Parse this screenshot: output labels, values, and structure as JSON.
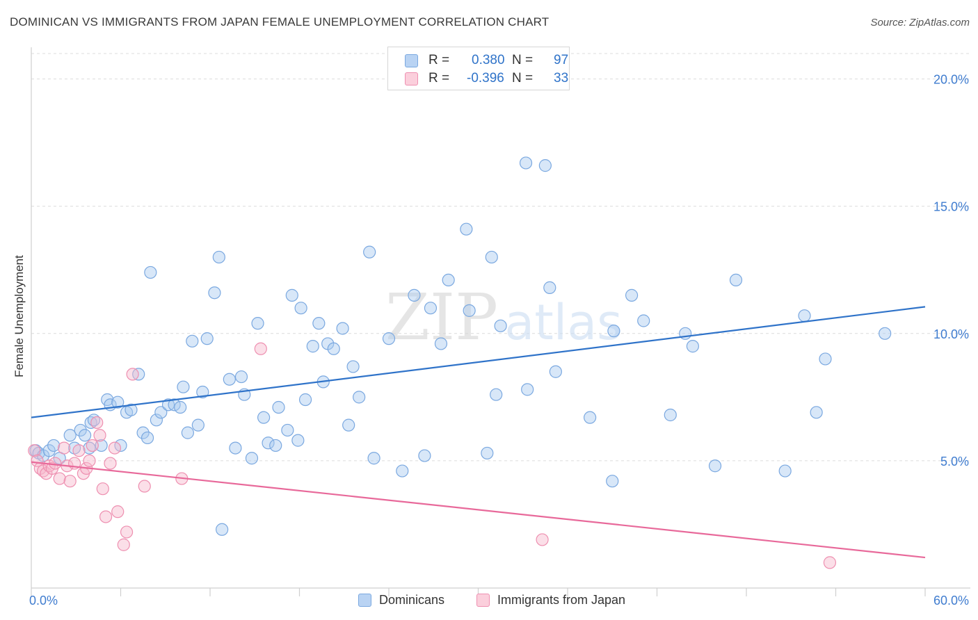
{
  "title": "DOMINICAN VS IMMIGRANTS FROM JAPAN FEMALE UNEMPLOYMENT CORRELATION CHART",
  "source": "Source: ZipAtlas.com",
  "watermark": {
    "zip": "ZIP",
    "atlas": "atlas"
  },
  "legend": {
    "r_label": "R =",
    "n_label": "N =",
    "rows": [
      {
        "name": "Dominicans",
        "r": "0.380",
        "n": "97"
      },
      {
        "name": "Immigrants from Japan",
        "r": "-0.396",
        "n": "33"
      }
    ]
  },
  "colors": {
    "blue_fill": "#a9c9f0",
    "blue_stroke": "#7aa8e0",
    "blue_line": "#2f73c9",
    "pink_fill": "#f7b8cb",
    "pink_stroke": "#ee8fb0",
    "pink_line": "#e8699a",
    "axis_text": "#3f7ccf",
    "grid": "#dcdcdc"
  },
  "chart_data": {
    "type": "scatter",
    "title": "DOMINICAN VS IMMIGRANTS FROM JAPAN FEMALE UNEMPLOYMENT CORRELATION CHART",
    "xlabel": "",
    "ylabel": "Female Unemployment",
    "xlim": [
      0,
      60
    ],
    "ylim": [
      0,
      21
    ],
    "x_tick_labels": [
      "0.0%",
      "60.0%"
    ],
    "y_ticks": [
      5,
      10,
      15,
      20
    ],
    "y_tick_labels": [
      "5.0%",
      "10.0%",
      "15.0%",
      "20.0%"
    ],
    "grid": true,
    "legend_position": "bottom",
    "series": [
      {
        "name": "Dominicans",
        "trend": {
          "x0": 0,
          "y0": 6.7,
          "x1": 60,
          "y1": 11.05
        },
        "points": [
          [
            0.3,
            5.4
          ],
          [
            0.5,
            5.3
          ],
          [
            0.8,
            5.2
          ],
          [
            1.2,
            5.4
          ],
          [
            1.5,
            5.6
          ],
          [
            1.9,
            5.1
          ],
          [
            2.6,
            6.0
          ],
          [
            2.9,
            5.5
          ],
          [
            3.3,
            6.2
          ],
          [
            3.6,
            6.0
          ],
          [
            4.0,
            6.5
          ],
          [
            4.2,
            6.6
          ],
          [
            4.7,
            5.6
          ],
          [
            5.1,
            7.4
          ],
          [
            5.3,
            7.2
          ],
          [
            5.8,
            7.3
          ],
          [
            6.0,
            5.6
          ],
          [
            6.4,
            6.9
          ],
          [
            6.7,
            7.0
          ],
          [
            7.2,
            8.4
          ],
          [
            7.5,
            6.1
          ],
          [
            7.8,
            5.9
          ],
          [
            8.0,
            12.4
          ],
          [
            8.4,
            6.6
          ],
          [
            8.7,
            6.9
          ],
          [
            9.2,
            7.2
          ],
          [
            9.6,
            7.2
          ],
          [
            10.0,
            7.1
          ],
          [
            10.2,
            7.9
          ],
          [
            10.5,
            6.1
          ],
          [
            10.8,
            9.7
          ],
          [
            11.2,
            6.4
          ],
          [
            11.5,
            7.7
          ],
          [
            11.8,
            9.8
          ],
          [
            12.3,
            11.6
          ],
          [
            12.6,
            13.0
          ],
          [
            12.8,
            2.3
          ],
          [
            13.3,
            8.2
          ],
          [
            13.7,
            5.5
          ],
          [
            14.1,
            8.3
          ],
          [
            14.3,
            7.6
          ],
          [
            14.8,
            5.1
          ],
          [
            15.2,
            10.4
          ],
          [
            15.6,
            6.7
          ],
          [
            15.9,
            5.7
          ],
          [
            16.4,
            5.6
          ],
          [
            16.6,
            7.1
          ],
          [
            17.2,
            6.2
          ],
          [
            17.5,
            11.5
          ],
          [
            17.9,
            5.8
          ],
          [
            18.1,
            11.0
          ],
          [
            18.4,
            7.4
          ],
          [
            18.9,
            9.5
          ],
          [
            19.3,
            10.4
          ],
          [
            19.6,
            8.1
          ],
          [
            19.9,
            9.6
          ],
          [
            20.3,
            9.4
          ],
          [
            20.9,
            10.2
          ],
          [
            21.3,
            6.4
          ],
          [
            21.6,
            8.7
          ],
          [
            22.0,
            7.5
          ],
          [
            22.7,
            13.2
          ],
          [
            23.0,
            5.1
          ],
          [
            24.0,
            9.8
          ],
          [
            24.9,
            4.6
          ],
          [
            25.7,
            11.5
          ],
          [
            26.4,
            5.2
          ],
          [
            26.8,
            11.0
          ],
          [
            27.5,
            9.6
          ],
          [
            28.0,
            12.1
          ],
          [
            29.2,
            14.1
          ],
          [
            29.4,
            10.9
          ],
          [
            30.6,
            5.3
          ],
          [
            30.9,
            13.0
          ],
          [
            31.2,
            7.6
          ],
          [
            31.5,
            10.3
          ],
          [
            33.2,
            16.7
          ],
          [
            33.3,
            7.8
          ],
          [
            34.5,
            16.6
          ],
          [
            34.8,
            11.8
          ],
          [
            35.2,
            8.5
          ],
          [
            37.5,
            6.7
          ],
          [
            39.0,
            4.2
          ],
          [
            39.1,
            10.1
          ],
          [
            40.3,
            11.5
          ],
          [
            41.1,
            10.5
          ],
          [
            42.9,
            6.8
          ],
          [
            43.9,
            10.0
          ],
          [
            44.4,
            9.5
          ],
          [
            45.9,
            4.8
          ],
          [
            47.3,
            12.1
          ],
          [
            50.6,
            4.6
          ],
          [
            51.9,
            10.7
          ],
          [
            52.7,
            6.9
          ],
          [
            53.3,
            9.0
          ],
          [
            57.3,
            10.0
          ],
          [
            3.9,
            5.5
          ]
        ]
      },
      {
        "name": "Immigrants from Japan",
        "trend": {
          "x0": 0,
          "y0": 4.95,
          "x1": 60,
          "y1": 1.2
        },
        "points": [
          [
            0.2,
            5.4
          ],
          [
            0.4,
            5.0
          ],
          [
            0.6,
            4.7
          ],
          [
            0.8,
            4.6
          ],
          [
            1.0,
            4.5
          ],
          [
            1.2,
            4.8
          ],
          [
            1.4,
            4.7
          ],
          [
            1.6,
            4.9
          ],
          [
            1.9,
            4.3
          ],
          [
            2.2,
            5.5
          ],
          [
            2.4,
            4.8
          ],
          [
            2.6,
            4.2
          ],
          [
            2.9,
            4.9
          ],
          [
            3.2,
            5.4
          ],
          [
            3.5,
            4.5
          ],
          [
            3.7,
            4.7
          ],
          [
            3.9,
            5.0
          ],
          [
            4.1,
            5.6
          ],
          [
            4.4,
            6.5
          ],
          [
            4.6,
            6.0
          ],
          [
            4.8,
            3.9
          ],
          [
            5.0,
            2.8
          ],
          [
            5.3,
            4.9
          ],
          [
            5.6,
            5.5
          ],
          [
            5.8,
            3.0
          ],
          [
            6.2,
            1.7
          ],
          [
            6.4,
            2.2
          ],
          [
            6.8,
            8.4
          ],
          [
            7.6,
            4.0
          ],
          [
            10.1,
            4.3
          ],
          [
            15.4,
            9.4
          ],
          [
            34.3,
            1.9
          ],
          [
            53.6,
            1.0
          ]
        ]
      }
    ]
  }
}
